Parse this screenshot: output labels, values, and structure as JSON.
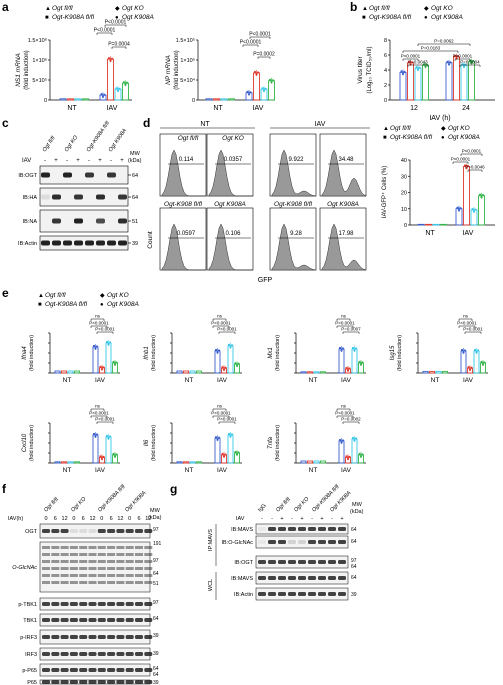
{
  "figure": {
    "colors": {
      "fl": "#3a5fcd",
      "ko": "#e23a2e",
      "k908fl": "#38c7e8",
      "k908a": "#33b54a"
    },
    "panel_labels": [
      "a",
      "b",
      "c",
      "d",
      "e",
      "f",
      "g"
    ],
    "legend_a": [
      "Ogt fl/fl",
      "Ogt-K908A fl/fl",
      "Ogt KO",
      "Ogt K908A"
    ],
    "legend_b": [
      "Ogt fl/fl",
      "Ogt-K908A fl/fl",
      "Ogt KO",
      "Ogt K908A"
    ],
    "legend_d": [
      "Ogt fl/fl",
      "Ogt-K908A fl/fl",
      "Ogt KO",
      "Ogt K908A"
    ],
    "legend_e": [
      "Ogt fl/fl",
      "Ogt-K908A fl/fl",
      "Ogt KO",
      "Ogt K908A"
    ],
    "groups": [
      "NT",
      "IAV"
    ],
    "pvals": {
      "p1": "P<0.0001",
      "p4": "P=0.0004",
      "p2": "P=0.0002",
      "p183": "P=0.0183",
      "p43": "P=0.0043",
      "p62": "P=0.0062",
      "p46": "P=0.0046",
      "p7": "P=0.0007",
      "ns": "ns"
    },
    "panel_a": {
      "ns1_ylabel": "NS1 mRNA",
      "np_ylabel": "NP mRNA",
      "ylabel2": "(fold induction)",
      "ns1_ticks": [
        "0",
        "5×10⁵",
        "1×10⁶",
        "1.5×10⁶"
      ],
      "np_ticks": [
        "0",
        "5×10⁴",
        "1×10⁵",
        "1.5×10⁵"
      ]
    },
    "panel_b": {
      "ylabel": "Virus titer",
      "ylabel2": "(Log₁₀ TCID₅₀/ml)",
      "xlabel": "IAV (h)",
      "ticks": [
        "0",
        "2",
        "4",
        "6",
        "8"
      ],
      "x": [
        "12",
        "24"
      ]
    },
    "panel_c": {
      "cols": [
        "Ogt fl/fl",
        "Ogt KO",
        "Ogt-K908A fl/fl",
        "Ogt K908A"
      ],
      "iav": [
        "-",
        "+",
        "-",
        "+",
        "-",
        "+",
        "-",
        "+"
      ],
      "iav_label": "IAV",
      "mw_label": "MW",
      "kda_label": "(kDa)",
      "rows": [
        "IB:OGT",
        "IB:HA",
        "IB:NA",
        "IB:Actin"
      ],
      "mw": [
        "64",
        "64",
        "51",
        "39"
      ]
    },
    "panel_d": {
      "nt": "NT",
      "iav": "IAV",
      "top_labels": [
        "Ogt fl/fl",
        "Ogt KO"
      ],
      "bottom_labels": [
        "Ogt-K908 fl/fl",
        "Ogt K908A"
      ],
      "values": [
        "0.114",
        "0.0357",
        "9.922",
        "34.48",
        "0.0597",
        "0.106",
        "9.28",
        "17.98"
      ],
      "xlabel": "GFP",
      "ylabel": "Count",
      "bar_ylabel": "IAV-GFP⁺ Cells (%)",
      "ticks": [
        "0",
        "10",
        "20",
        "30",
        "40"
      ]
    },
    "panel_e": {
      "genes": [
        "Ifna4",
        "Ifnb1",
        "Mx1",
        "Isg15",
        "Cxcl10",
        "Il6",
        "Tnfa"
      ],
      "ylabel2": "(fold induction)",
      "mrna": "mRNA"
    },
    "panel_f": {
      "cols": [
        "Ogt fl/fl",
        "Ogt KO",
        "Ogt-K908A fl/fl",
        "Ogt K908A"
      ],
      "times": [
        "0",
        "6",
        "12",
        "0",
        "6",
        "12",
        "0",
        "6",
        "12",
        "0",
        "6",
        "12"
      ],
      "iav_label": "IAV(h)",
      "mw_label": "MW",
      "kda_label": "(kDa)",
      "rows": [
        "OGT",
        "O-GlcNAc",
        "p-TBK1",
        "TBK1",
        "p-IRF3",
        "IRF3",
        "p-P65",
        "P65",
        "Actin"
      ],
      "mw": [
        "97",
        "191",
        "97",
        "64",
        "51",
        "97",
        "64",
        "39",
        "39",
        "64",
        "64",
        "39"
      ]
    },
    "panel_g": {
      "cols": [
        "IgG",
        "Ogt fl/fl",
        "Ogt KO",
        "Ogt-K908A fl/fl",
        "Ogt K908A"
      ],
      "iav": [
        "-",
        "-",
        "+",
        "-",
        "+",
        "-",
        "+",
        "-",
        "+"
      ],
      "iav_label": "IAV",
      "mw_label": "MW",
      "kda_label": "(kDa)",
      "ip": "IP:MAVS",
      "wcl": "WCL",
      "rows": [
        "IB:MAVS",
        "IB:O-GlcNAc",
        "IB:OGT",
        "IB:MAVS",
        "IB:Actin"
      ],
      "mw": [
        "64",
        "64",
        "97",
        "64",
        "64",
        "39"
      ]
    }
  }
}
